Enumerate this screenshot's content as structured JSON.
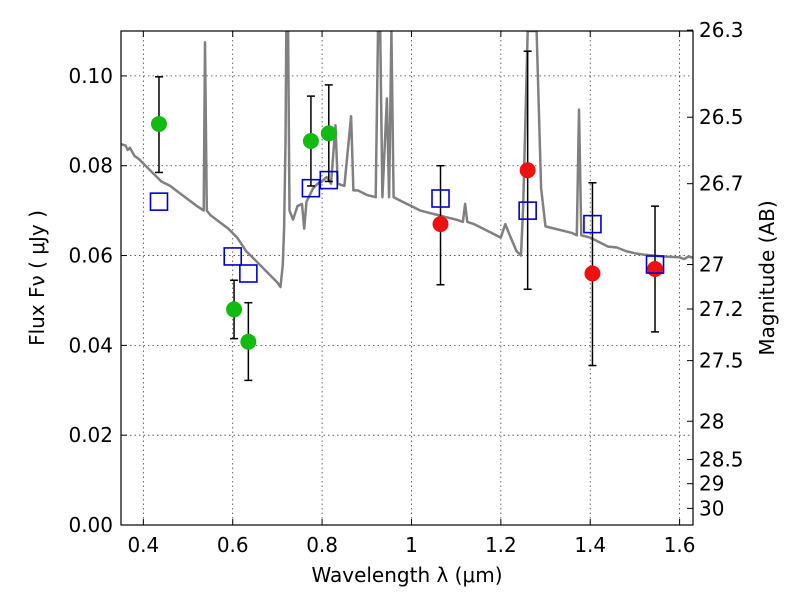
{
  "chart_data": {
    "type": "scatter",
    "xlabel": "Wavelength  λ (μm)",
    "ylabel": "Flux  Fν  ( μJy )",
    "ylabel_right": "Magnitude (AB)",
    "xlim": [
      0.35,
      1.63
    ],
    "ylim": [
      0.0,
      0.11
    ],
    "x_ticks": [
      0.4,
      0.6,
      0.8,
      1.0,
      1.2,
      1.4,
      1.6
    ],
    "x_tick_labels": [
      "0.4",
      "0.6",
      "0.8",
      "1",
      "1.2",
      "1.4",
      "1.6"
    ],
    "y_ticks": [
      0.0,
      0.02,
      0.04,
      0.06,
      0.08,
      0.1
    ],
    "y_tick_labels": [
      "0.00",
      "0.02",
      "0.04",
      "0.06",
      "0.08",
      "0.10"
    ],
    "right_ticks": [
      {
        "label": "26.3",
        "flux": 0.1102
      },
      {
        "label": "26.5",
        "flux": 0.0908
      },
      {
        "label": "26.7",
        "flux": 0.076
      },
      {
        "label": "27",
        "flux": 0.058
      },
      {
        "label": "27.2",
        "flux": 0.0481
      },
      {
        "label": "27.5",
        "flux": 0.0366
      },
      {
        "label": "28",
        "flux": 0.0231
      },
      {
        "label": "28.5",
        "flux": 0.0146
      },
      {
        "label": "29",
        "flux": 0.0092
      },
      {
        "label": "30",
        "flux": 0.0037
      }
    ],
    "grid": true,
    "series": [
      {
        "kind": "line",
        "color": "#808080",
        "points": [
          [
            0.35,
            0.0848
          ],
          [
            0.36,
            0.0845
          ],
          [
            0.365,
            0.0835
          ],
          [
            0.37,
            0.084
          ],
          [
            0.38,
            0.0822
          ],
          [
            0.39,
            0.0815
          ],
          [
            0.4,
            0.0805
          ],
          [
            0.41,
            0.0795
          ],
          [
            0.42,
            0.0785
          ],
          [
            0.43,
            0.0775
          ],
          [
            0.44,
            0.0765
          ],
          [
            0.46,
            0.0755
          ],
          [
            0.48,
            0.074
          ],
          [
            0.5,
            0.0725
          ],
          [
            0.52,
            0.071
          ],
          [
            0.535,
            0.07
          ],
          [
            0.538,
            0.1075
          ],
          [
            0.542,
            0.07
          ],
          [
            0.55,
            0.069
          ],
          [
            0.57,
            0.0675
          ],
          [
            0.59,
            0.066
          ],
          [
            0.61,
            0.064
          ],
          [
            0.63,
            0.061
          ],
          [
            0.65,
            0.059
          ],
          [
            0.67,
            0.057
          ],
          [
            0.69,
            0.055
          ],
          [
            0.7,
            0.054
          ],
          [
            0.707,
            0.053
          ],
          [
            0.712,
            0.058
          ],
          [
            0.715,
            0.066
          ],
          [
            0.718,
            0.085
          ],
          [
            0.72,
            0.11
          ],
          [
            0.724,
            0.11
          ],
          [
            0.727,
            0.07
          ],
          [
            0.735,
            0.068
          ],
          [
            0.745,
            0.071
          ],
          [
            0.755,
            0.0715
          ],
          [
            0.76,
            0.066
          ],
          [
            0.765,
            0.072
          ],
          [
            0.78,
            0.075
          ],
          [
            0.79,
            0.076
          ],
          [
            0.8,
            0.0765
          ],
          [
            0.81,
            0.0775
          ],
          [
            0.82,
            0.076
          ],
          [
            0.83,
            0.089
          ],
          [
            0.835,
            0.076
          ],
          [
            0.85,
            0.0755
          ],
          [
            0.865,
            0.091
          ],
          [
            0.87,
            0.0745
          ],
          [
            0.88,
            0.0745
          ],
          [
            0.9,
            0.0735
          ],
          [
            0.92,
            0.073
          ],
          [
            0.925,
            0.11
          ],
          [
            0.93,
            0.11
          ],
          [
            0.935,
            0.073
          ],
          [
            0.945,
            0.095
          ],
          [
            0.95,
            0.073
          ],
          [
            0.955,
            0.11
          ],
          [
            0.96,
            0.073
          ],
          [
            0.98,
            0.072
          ],
          [
            1.0,
            0.071
          ],
          [
            1.02,
            0.07
          ],
          [
            1.04,
            0.0695
          ],
          [
            1.06,
            0.069
          ],
          [
            1.08,
            0.0685
          ],
          [
            1.1,
            0.068
          ],
          [
            1.115,
            0.0675
          ],
          [
            1.12,
            0.0715
          ],
          [
            1.125,
            0.0675
          ],
          [
            1.14,
            0.067
          ],
          [
            1.16,
            0.066
          ],
          [
            1.18,
            0.065
          ],
          [
            1.2,
            0.064
          ],
          [
            1.21,
            0.067
          ],
          [
            1.22,
            0.0645
          ],
          [
            1.235,
            0.061
          ],
          [
            1.245,
            0.06
          ],
          [
            1.25,
            0.071
          ],
          [
            1.26,
            0.11
          ],
          [
            1.28,
            0.11
          ],
          [
            1.29,
            0.075
          ],
          [
            1.3,
            0.0665
          ],
          [
            1.32,
            0.066
          ],
          [
            1.34,
            0.0655
          ],
          [
            1.36,
            0.065
          ],
          [
            1.37,
            0.0645
          ],
          [
            1.375,
            0.0925
          ],
          [
            1.38,
            0.0645
          ],
          [
            1.4,
            0.064
          ],
          [
            1.42,
            0.063
          ],
          [
            1.44,
            0.062
          ],
          [
            1.46,
            0.0618
          ],
          [
            1.48,
            0.061
          ],
          [
            1.5,
            0.0605
          ],
          [
            1.52,
            0.0602
          ],
          [
            1.54,
            0.06
          ],
          [
            1.56,
            0.0598
          ],
          [
            1.58,
            0.0597
          ],
          [
            1.6,
            0.0596
          ],
          [
            1.61,
            0.0592
          ],
          [
            1.62,
            0.0598
          ],
          [
            1.63,
            0.0595
          ]
        ]
      },
      {
        "kind": "points",
        "marker": "circle",
        "color": "#11bb11",
        "points": [
          {
            "x": 0.435,
            "y": 0.0893,
            "err": [
              0.0785,
              0.0998
            ]
          },
          {
            "x": 0.603,
            "y": 0.048,
            "err": [
              0.0415,
              0.0545
            ]
          },
          {
            "x": 0.635,
            "y": 0.0408,
            "err": [
              0.0322,
              0.0495
            ]
          },
          {
            "x": 0.775,
            "y": 0.0855,
            "err": [
              0.0755,
              0.0955
            ]
          },
          {
            "x": 0.815,
            "y": 0.0872,
            "err": [
              0.0765,
              0.098
            ]
          }
        ]
      },
      {
        "kind": "points",
        "marker": "circle",
        "color": "#ee1111",
        "points": [
          {
            "x": 1.065,
            "y": 0.067,
            "err": [
              0.0535,
              0.08
            ]
          },
          {
            "x": 1.26,
            "y": 0.079,
            "err": [
              0.0525,
              0.1055
            ]
          },
          {
            "x": 1.405,
            "y": 0.056,
            "err": [
              0.0355,
              0.0762
            ]
          },
          {
            "x": 1.545,
            "y": 0.057,
            "err": [
              0.043,
              0.071
            ]
          }
        ]
      },
      {
        "kind": "points",
        "marker": "open-square",
        "color": "#0000cc",
        "points": [
          {
            "x": 0.435,
            "y": 0.072
          },
          {
            "x": 0.6,
            "y": 0.0598
          },
          {
            "x": 0.635,
            "y": 0.056
          },
          {
            "x": 0.775,
            "y": 0.075
          },
          {
            "x": 0.815,
            "y": 0.0768
          },
          {
            "x": 1.065,
            "y": 0.0727
          },
          {
            "x": 1.26,
            "y": 0.07
          },
          {
            "x": 1.405,
            "y": 0.067
          },
          {
            "x": 1.545,
            "y": 0.058
          }
        ]
      }
    ]
  }
}
